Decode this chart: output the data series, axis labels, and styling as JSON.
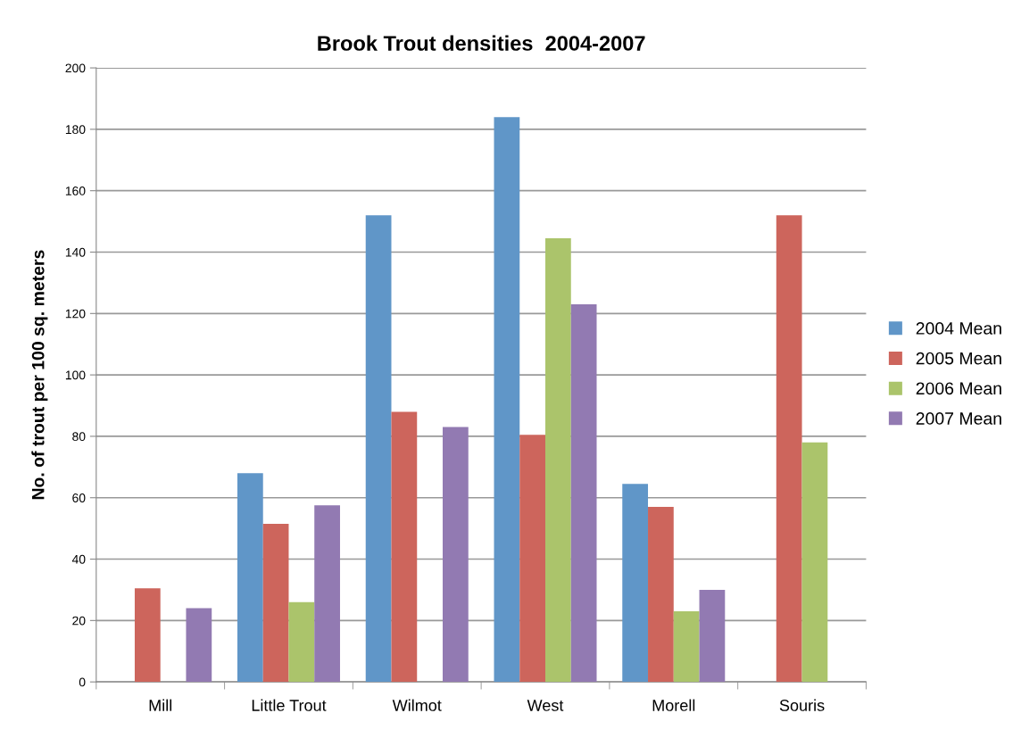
{
  "chart_data": {
    "type": "bar",
    "title": "Brook Trout densities  2004-2007",
    "ylabel": "No. of trout per 100 sq. meters",
    "categories": [
      "Mill",
      "Little Trout",
      "Wilmot",
      "West",
      "Morell",
      "Souris"
    ],
    "series": [
      {
        "name": "2004 Mean",
        "color": "#6096c8",
        "values": [
          null,
          68,
          152,
          184,
          64.5,
          null
        ]
      },
      {
        "name": "2005 Mean",
        "color": "#cd655c",
        "values": [
          30.5,
          51.5,
          88,
          80.5,
          57,
          152
        ]
      },
      {
        "name": "2006 Mean",
        "color": "#abc46b",
        "values": [
          null,
          26,
          null,
          144.5,
          23,
          78
        ]
      },
      {
        "name": "2007 Mean",
        "color": "#927ab2",
        "values": [
          24,
          57.5,
          83,
          123,
          30,
          null
        ]
      }
    ],
    "ylim": [
      0,
      200
    ],
    "yticks": [
      0,
      20,
      40,
      60,
      80,
      100,
      120,
      140,
      160,
      180,
      200
    ],
    "grid": "y",
    "legend": "right"
  }
}
